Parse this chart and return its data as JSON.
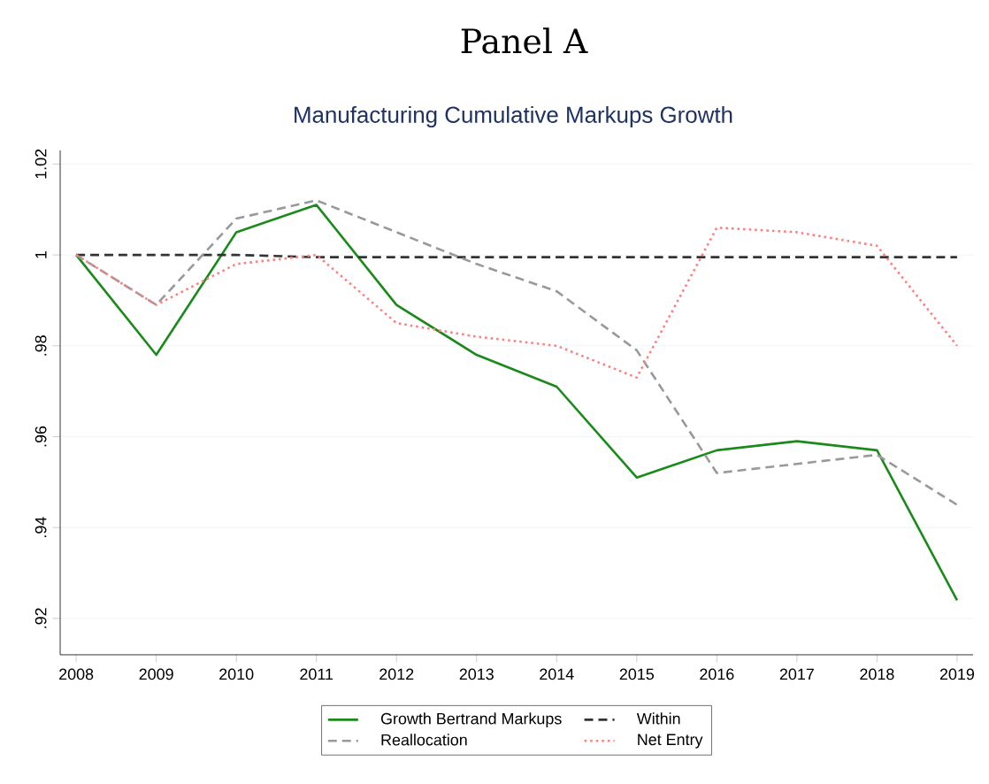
{
  "chart_data": {
    "type": "line",
    "title": "Panel A",
    "subtitle": "Manufacturing Cumulative Markups Growth",
    "x": [
      2008,
      2009,
      2010,
      2011,
      2012,
      2013,
      2014,
      2015,
      2016,
      2017,
      2018,
      2019
    ],
    "series": [
      {
        "name": "Growth Bertrand Markups",
        "color": "#1a8a1a",
        "line_style": "solid",
        "values": [
          1.0,
          0.978,
          1.005,
          1.011,
          0.989,
          0.978,
          0.971,
          0.951,
          0.957,
          0.959,
          0.957,
          0.924
        ]
      },
      {
        "name": "Within",
        "color": "#333333",
        "line_style": "dashed",
        "values": [
          1.0,
          1.0,
          1.0,
          0.9995,
          0.9995,
          0.9995,
          0.9995,
          0.9995,
          0.9995,
          0.9995,
          0.9995,
          0.9995
        ]
      },
      {
        "name": "Reallocation",
        "color": "#999999",
        "line_style": "dashed",
        "values": [
          1.0,
          0.989,
          1.008,
          1.012,
          1.005,
          0.998,
          0.992,
          0.979,
          0.952,
          0.954,
          0.956,
          0.945
        ]
      },
      {
        "name": "Net Entry",
        "color": "#ff8080",
        "line_style": "dotted",
        "values": [
          1.0,
          0.989,
          0.998,
          1.0,
          0.985,
          0.982,
          0.98,
          0.973,
          1.006,
          1.005,
          1.002,
          0.98
        ]
      }
    ],
    "xlim": [
      2007.8,
      2019.2
    ],
    "ylim": [
      0.912,
      1.023
    ],
    "xticks": [
      2008,
      2009,
      2010,
      2011,
      2012,
      2013,
      2014,
      2015,
      2016,
      2017,
      2018,
      2019
    ],
    "yticks": [
      {
        "value": 0.92,
        "label": ".92"
      },
      {
        "value": 0.94,
        "label": ".94"
      },
      {
        "value": 0.96,
        "label": ".96"
      },
      {
        "value": 0.98,
        "label": ".98"
      },
      1,
      {
        "value": 1.02,
        "label": "1.02"
      }
    ],
    "grid": "y",
    "legend": "bottom",
    "marker": "none"
  }
}
